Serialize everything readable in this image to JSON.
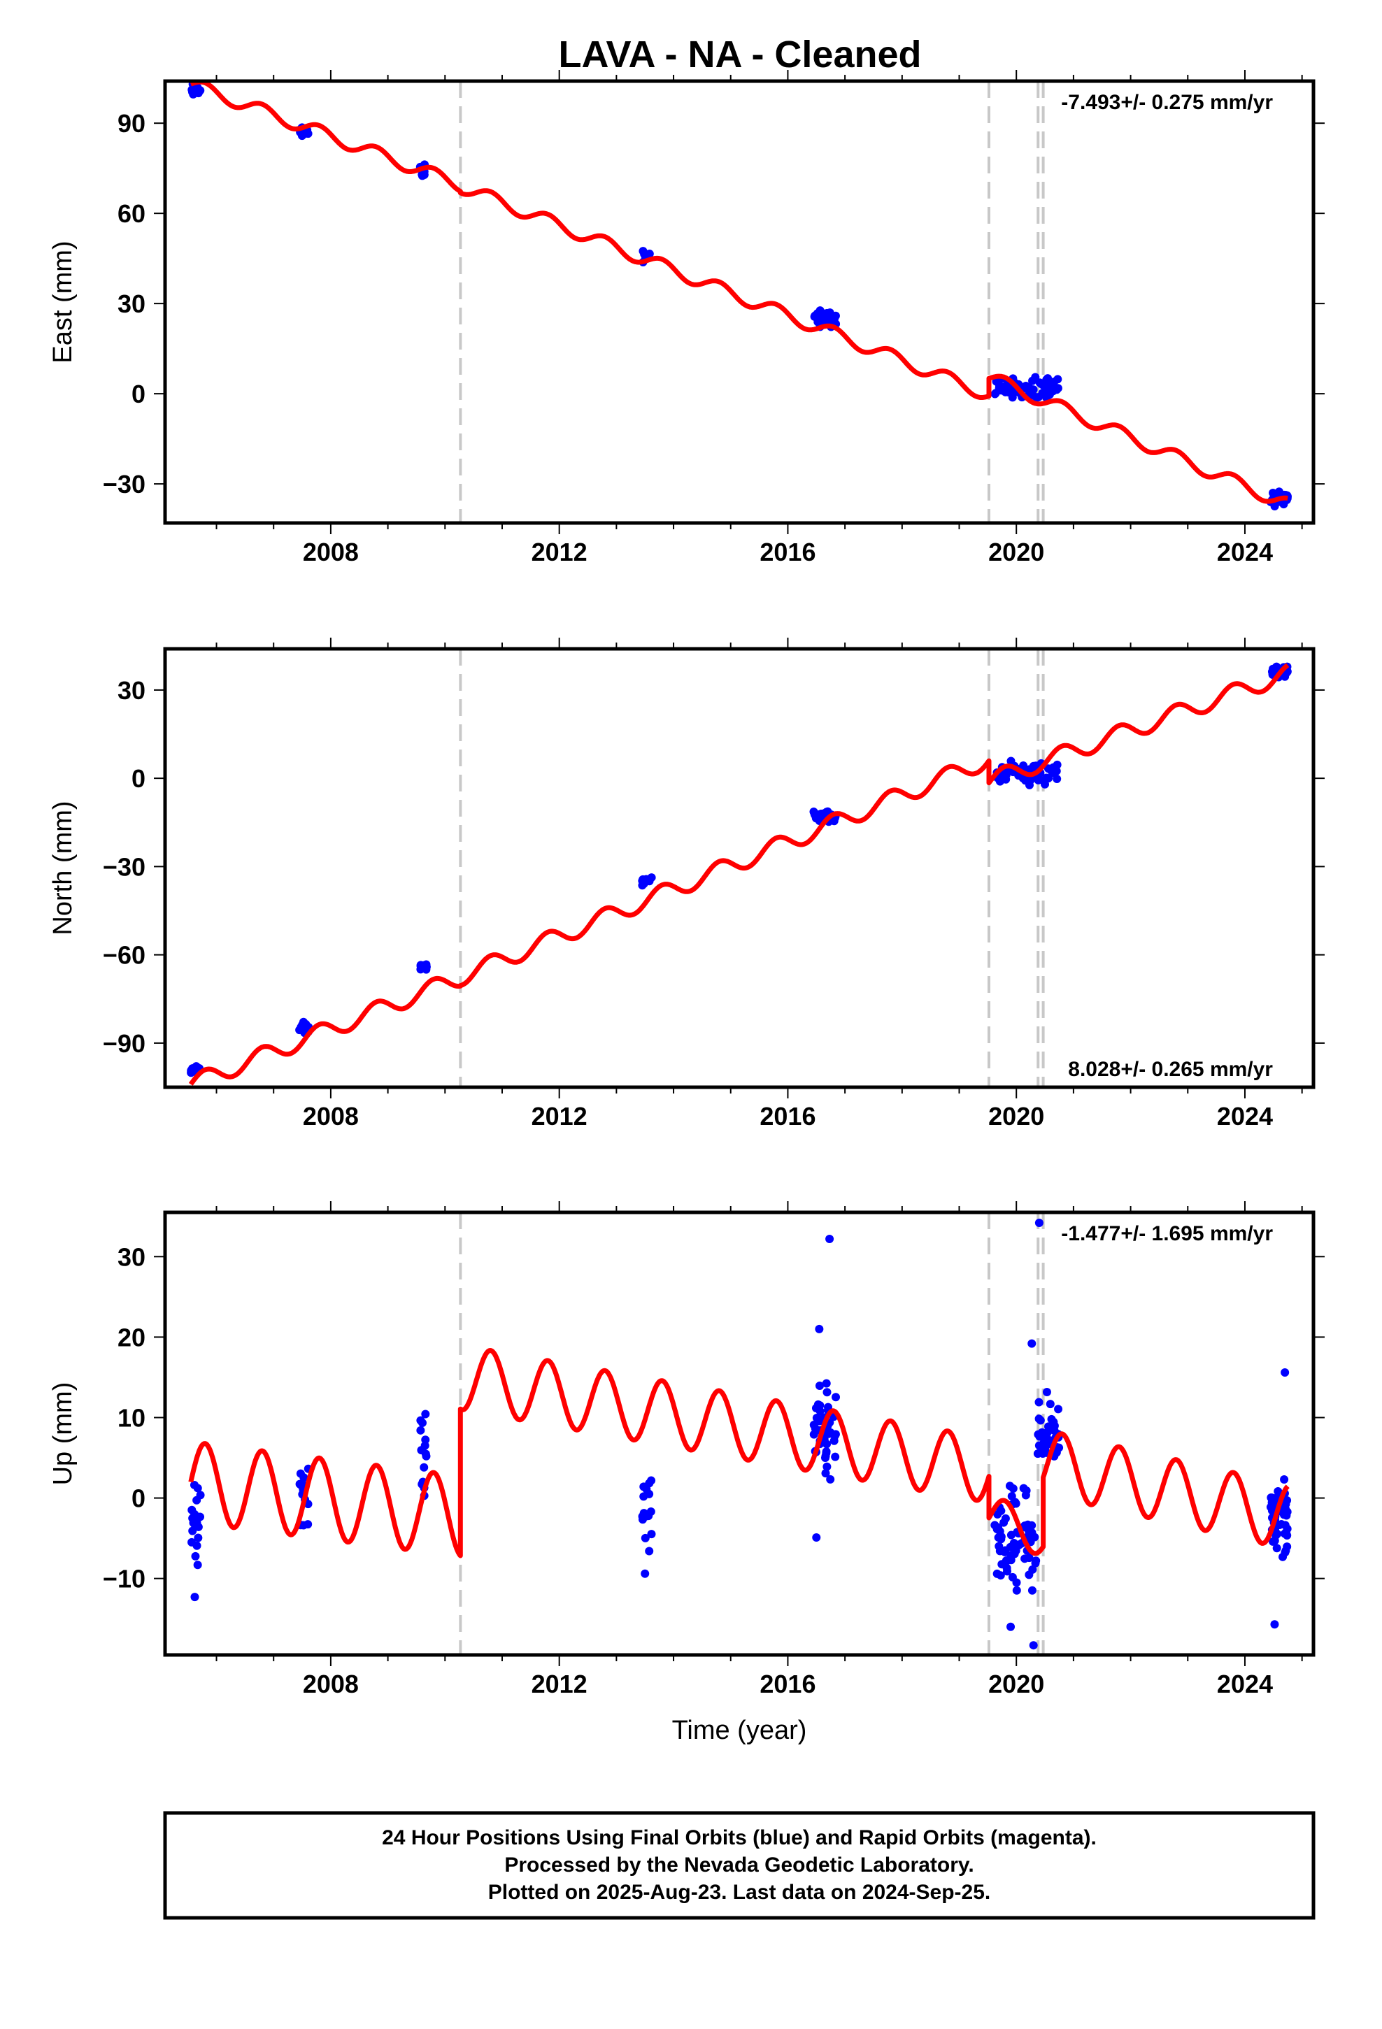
{
  "title": "LAVA  - NA - Cleaned",
  "footer": {
    "lines": [
      "24 Hour Positions Using Final Orbits (blue) and Rapid Orbits (magenta).",
      "Processed by the Nevada Geodetic Laboratory.",
      "Plotted on 2025-Aug-23. Last data on 2024-Sep-25."
    ]
  },
  "colors": {
    "data_points": "#0000ff",
    "model_line": "#ff0000",
    "break_lines": "#c8c8c8",
    "frame": "#000000"
  },
  "chart_data": [
    {
      "type": "scatter",
      "panel": "east",
      "xlabel": "",
      "ylabel": "East (mm)",
      "rate_label": "-7.493+/- 0.275 mm/yr",
      "rate_label_position": "top-right",
      "xlim": [
        2005.1,
        2025.2
      ],
      "ylim": [
        -43,
        104
      ],
      "x_ticks": [
        2008,
        2012,
        2016,
        2020,
        2024
      ],
      "x_tick_labels": [
        "2008",
        "2012",
        "2016",
        "2020",
        "2024"
      ],
      "y_ticks": [
        -30,
        0,
        30,
        60,
        90
      ],
      "y_tick_labels": [
        "−30",
        "0",
        "30",
        "60",
        "90"
      ],
      "break_years": [
        2010.27,
        2019.52,
        2020.38,
        2020.47
      ],
      "model": {
        "segments": [
          {
            "x0": 2005.55,
            "x1": 2010.27,
            "y0": 103.0,
            "slope": -7.1,
            "amp": 2.2
          },
          {
            "x0": 2010.27,
            "x1": 2019.52,
            "y0": 69.0,
            "slope": -7.5,
            "amp": 2.2
          },
          {
            "x0": 2019.52,
            "x1": 2024.75,
            "y0": 5.5,
            "slope": -8.1,
            "amp": 2.2
          }
        ]
      },
      "clusters": [
        {
          "x_range": [
            2005.55,
            2005.72
          ],
          "y_center": 101,
          "y_spread": 3,
          "count": 16
        },
        {
          "x_range": [
            2007.45,
            2007.62
          ],
          "y_center": 87,
          "y_spread": 3,
          "count": 12
        },
        {
          "x_range": [
            2009.55,
            2009.68
          ],
          "y_center": 74,
          "y_spread": 3,
          "count": 10
        },
        {
          "x_range": [
            2013.45,
            2013.62
          ],
          "y_center": 46,
          "y_spread": 3,
          "count": 10
        },
        {
          "x_range": [
            2016.45,
            2016.85
          ],
          "y_center": 25,
          "y_spread": 4,
          "count": 30
        },
        {
          "x_range": [
            2019.62,
            2020.75
          ],
          "y_center": 2,
          "y_spread": 5,
          "count": 60
        },
        {
          "x_range": [
            2024.45,
            2024.75
          ],
          "y_center": -35,
          "y_spread": 3,
          "count": 40
        }
      ]
    },
    {
      "type": "scatter",
      "panel": "north",
      "xlabel": "",
      "ylabel": "North (mm)",
      "rate_label": "8.028+/- 0.265 mm/yr",
      "rate_label_position": "bottom-right",
      "xlim": [
        2005.1,
        2025.2
      ],
      "ylim": [
        -105,
        44
      ],
      "x_ticks": [
        2008,
        2012,
        2016,
        2020,
        2024
      ],
      "x_tick_labels": [
        "2008",
        "2012",
        "2016",
        "2020",
        "2024"
      ],
      "y_ticks": [
        -90,
        -60,
        -30,
        0,
        30
      ],
      "y_tick_labels": [
        "−90",
        "−60",
        "−30",
        "0",
        "30"
      ],
      "break_years": [
        2010.27,
        2019.52,
        2020.38,
        2020.47
      ],
      "model": {
        "segments": [
          {
            "x0": 2005.55,
            "x1": 2010.27,
            "y0": -104.0,
            "slope": 7.7,
            "amp": 3.0
          },
          {
            "x0": 2010.27,
            "x1": 2019.52,
            "y0": -67.5,
            "slope": 8.0,
            "amp": 3.0
          },
          {
            "x0": 2019.52,
            "x1": 2024.75,
            "y0": -1.0,
            "slope": 7.0,
            "amp": 3.0
          }
        ]
      },
      "clusters": [
        {
          "x_range": [
            2005.55,
            2005.72
          ],
          "y_center": -99,
          "y_spread": 3,
          "count": 16
        },
        {
          "x_range": [
            2007.45,
            2007.62
          ],
          "y_center": -84,
          "y_spread": 3,
          "count": 12
        },
        {
          "x_range": [
            2009.55,
            2009.68
          ],
          "y_center": -64,
          "y_spread": 2,
          "count": 10
        },
        {
          "x_range": [
            2013.45,
            2013.62
          ],
          "y_center": -35,
          "y_spread": 2,
          "count": 10
        },
        {
          "x_range": [
            2016.45,
            2016.85
          ],
          "y_center": -13,
          "y_spread": 3,
          "count": 30
        },
        {
          "x_range": [
            2019.62,
            2020.75
          ],
          "y_center": 2,
          "y_spread": 5,
          "count": 60
        },
        {
          "x_range": [
            2024.45,
            2024.75
          ],
          "y_center": 36,
          "y_spread": 3,
          "count": 40
        }
      ]
    },
    {
      "type": "scatter",
      "panel": "up",
      "xlabel": "Time (year)",
      "ylabel": "Up (mm)",
      "rate_label": "-1.477+/- 1.695 mm/yr",
      "rate_label_position": "top-right",
      "xlim": [
        2005.1,
        2025.2
      ],
      "ylim": [
        -19.5,
        35.5
      ],
      "x_ticks": [
        2008,
        2012,
        2016,
        2020,
        2024
      ],
      "x_tick_labels": [
        "2008",
        "2012",
        "2016",
        "2020",
        "2024"
      ],
      "y_ticks": [
        -10,
        0,
        10,
        20,
        30
      ],
      "y_tick_labels": [
        "−10",
        "0",
        "10",
        "20",
        "30"
      ],
      "break_years": [
        2010.27,
        2019.52,
        2020.38,
        2020.47
      ],
      "model": {
        "segments": [
          {
            "x0": 2005.55,
            "x1": 2010.27,
            "y0": 2.0,
            "slope": -0.9,
            "amp": 5.0
          },
          {
            "x0": 2010.27,
            "x1": 2019.52,
            "y0": 15.0,
            "slope": -1.25,
            "amp": 4.0
          },
          {
            "x0": 2019.52,
            "x1": 2020.47,
            "y0": -2.0,
            "slope": -3.0,
            "amp": 2.5
          },
          {
            "x0": 2020.47,
            "x1": 2024.75,
            "y0": 4.5,
            "slope": -1.6,
            "amp": 4.0
          }
        ]
      },
      "clusters": [
        {
          "x_range": [
            2005.55,
            2005.72
          ],
          "y_center": -3,
          "y_spread": 7,
          "count": 22
        },
        {
          "x_range": [
            2007.45,
            2007.62
          ],
          "y_center": 1,
          "y_spread": 6,
          "count": 16
        },
        {
          "x_range": [
            2009.55,
            2009.68
          ],
          "y_center": 5,
          "y_spread": 7,
          "count": 14
        },
        {
          "x_range": [
            2013.45,
            2013.62
          ],
          "y_center": -1,
          "y_spread": 8,
          "count": 16
        },
        {
          "x_range": [
            2016.45,
            2016.85
          ],
          "y_center": 8,
          "y_spread": 8,
          "count": 45
        },
        {
          "x_range": [
            2019.62,
            2020.35
          ],
          "y_center": -5,
          "y_spread": 9,
          "count": 70
        },
        {
          "x_range": [
            2020.35,
            2020.75
          ],
          "y_center": 8,
          "y_spread": 6,
          "count": 35
        },
        {
          "x_range": [
            2024.45,
            2024.75
          ],
          "y_center": -3,
          "y_spread": 7,
          "count": 55
        }
      ],
      "outliers": [
        {
          "x": 2016.73,
          "y": 32.2
        },
        {
          "x": 2020.4,
          "y": 34.2
        },
        {
          "x": 2016.55,
          "y": 21.0
        },
        {
          "x": 2020.27,
          "y": 19.2
        },
        {
          "x": 2024.7,
          "y": 15.6
        },
        {
          "x": 2005.62,
          "y": -12.3
        },
        {
          "x": 2013.5,
          "y": -9.4
        },
        {
          "x": 2016.5,
          "y": -4.9
        },
        {
          "x": 2024.52,
          "y": -15.7
        },
        {
          "x": 2020.3,
          "y": -18.3
        },
        {
          "x": 2019.9,
          "y": -16.0
        }
      ]
    }
  ]
}
